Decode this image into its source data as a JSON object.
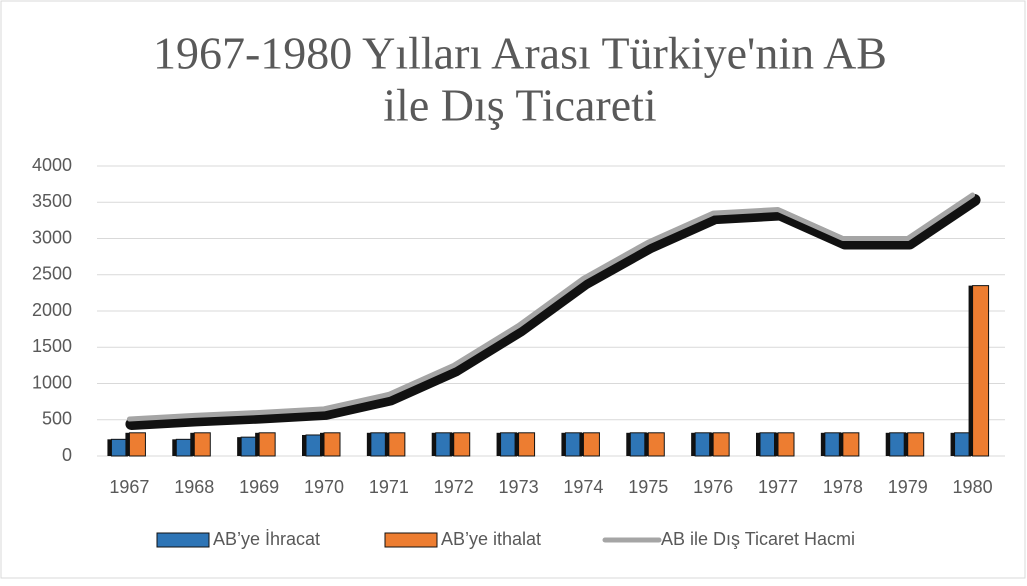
{
  "chart_data": {
    "type": "bar",
    "title": [
      "1967-1980 Yılları Arası Türkiye'nin AB",
      "ile Dış Ticareti"
    ],
    "categories": [
      "1967",
      "1968",
      "1969",
      "1970",
      "1971",
      "1972",
      "1973",
      "1974",
      "1975",
      "1976",
      "1977",
      "1978",
      "1979",
      "1980"
    ],
    "series": [
      {
        "name": "AB’ye İhracat",
        "color": "#2e75b6",
        "type": "bar",
        "values": [
          230,
          230,
          260,
          290,
          320,
          320,
          320,
          320,
          320,
          320,
          320,
          320,
          320,
          320
        ]
      },
      {
        "name": "AB’ye ithalat",
        "color": "#ed7d31",
        "type": "bar",
        "values": [
          320,
          320,
          320,
          320,
          320,
          320,
          320,
          320,
          320,
          320,
          320,
          320,
          320,
          2350
        ]
      },
      {
        "name": "AB ile Dış Ticaret Hacmi",
        "color": "#a5a5a5",
        "type": "line",
        "values": [
          510,
          560,
          600,
          650,
          850,
          1250,
          1800,
          2450,
          2950,
          3350,
          3400,
          3000,
          3000,
          3600
        ]
      }
    ],
    "ylim": [
      0,
      4000
    ],
    "yticks": [
      0,
      500,
      1000,
      1500,
      2000,
      2500,
      3000,
      3500,
      4000
    ],
    "grid": true,
    "legend": "bottom"
  }
}
